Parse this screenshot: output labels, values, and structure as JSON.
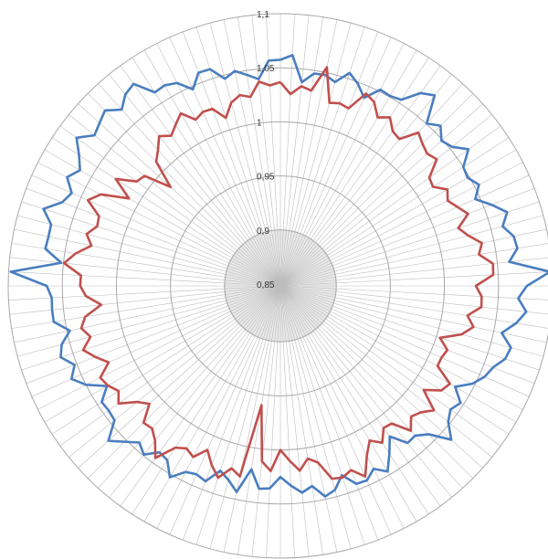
{
  "chart_data": {
    "type": "radar",
    "radial_axis": {
      "min": 0.85,
      "max": 1.1,
      "ticks": [
        {
          "value": 0.85,
          "label": "0,85"
        },
        {
          "value": 0.9,
          "label": "0,9"
        },
        {
          "value": 0.95,
          "label": "0,95"
        },
        {
          "value": 1.0,
          "label": "1"
        },
        {
          "value": 1.05,
          "label": "1,05"
        },
        {
          "value": 1.1,
          "label": "1,1"
        }
      ]
    },
    "category_count": 120,
    "grid": true,
    "legend": "none",
    "series": [
      {
        "color": "#4a7ebf",
        "anchors": [
          [
            0,
            1.052
          ],
          [
            4,
            1.045
          ],
          [
            8,
            1.048
          ],
          [
            12,
            1.058
          ],
          [
            16,
            1.055
          ],
          [
            20,
            1.05
          ],
          [
            24,
            1.06
          ],
          [
            28,
            1.072
          ],
          [
            32,
            1.07
          ],
          [
            36,
            1.066
          ],
          [
            40,
            1.043
          ],
          [
            44,
            1.05
          ],
          [
            48,
            1.028
          ],
          [
            52,
            1.045
          ],
          [
            56,
            1.04
          ],
          [
            60,
            1.032
          ],
          [
            64,
            1.035
          ],
          [
            68,
            1.04
          ],
          [
            72,
            1.045
          ],
          [
            76,
            1.052
          ],
          [
            80,
            1.042
          ],
          [
            84,
            1.06
          ],
          [
            88,
            1.055
          ],
          [
            92,
            1.062
          ],
          [
            96,
            1.07
          ],
          [
            100,
            1.065
          ],
          [
            104,
            1.078
          ],
          [
            108,
            1.07
          ],
          [
            112,
            1.056
          ],
          [
            116,
            1.048
          ],
          [
            120,
            1.052
          ]
        ],
        "spikes": [
          [
            1,
            1.062
          ],
          [
            13,
            1.075
          ],
          [
            29,
            1.098
          ],
          [
            38,
            1.055
          ],
          [
            60,
            1.025
          ],
          [
            63,
            1.02
          ],
          [
            89,
            1.06
          ],
          [
            91,
            1.098
          ]
        ]
      },
      {
        "color": "#c0504d",
        "anchors": [
          [
            0,
            1.035
          ],
          [
            4,
            1.02
          ],
          [
            8,
            1.035
          ],
          [
            12,
            1.03
          ],
          [
            16,
            1.032
          ],
          [
            20,
            1.02
          ],
          [
            24,
            1.03
          ],
          [
            28,
            1.04
          ],
          [
            32,
            1.035
          ],
          [
            36,
            1.01
          ],
          [
            40,
            1.02
          ],
          [
            44,
            1.03
          ],
          [
            48,
            1.01
          ],
          [
            52,
            1.035
          ],
          [
            56,
            1.025
          ],
          [
            60,
            1.01
          ],
          [
            64,
            1.03
          ],
          [
            68,
            1.02
          ],
          [
            72,
            1.035
          ],
          [
            76,
            1.02
          ],
          [
            80,
            1.03
          ],
          [
            84,
            1.035
          ],
          [
            88,
            1.025
          ],
          [
            92,
            1.04
          ],
          [
            96,
            1.03
          ],
          [
            100,
            1.035
          ],
          [
            104,
            1.005
          ],
          [
            108,
            1.03
          ],
          [
            112,
            1.02
          ],
          [
            116,
            1.025
          ],
          [
            120,
            1.035
          ]
        ],
        "spikes": [
          [
            4,
            1.055
          ],
          [
            42,
            1.012
          ],
          [
            47,
            1.012
          ],
          [
            57,
            1.01
          ],
          [
            60,
            1.0
          ],
          [
            63,
            0.96
          ],
          [
            100,
            1.01
          ],
          [
            104,
            0.985
          ]
        ]
      }
    ]
  }
}
